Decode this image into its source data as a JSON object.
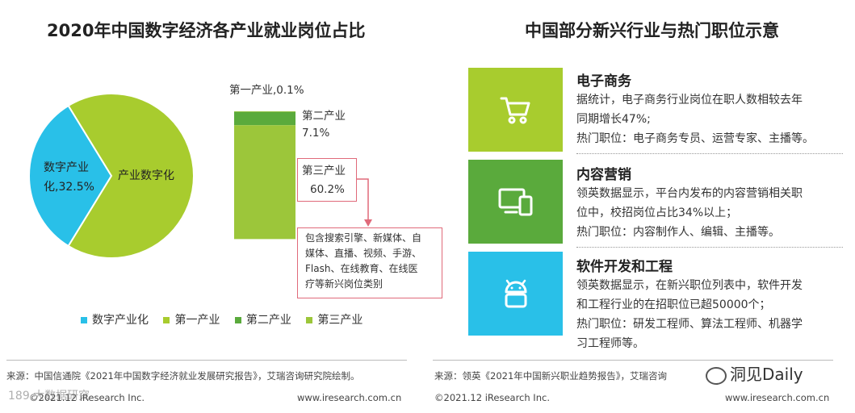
{
  "chart_data": {
    "type": "pie",
    "title": "2020年中国数字经济各产业就业岗位占比",
    "categories": [
      "数字产业化",
      "产业数字化"
    ],
    "values": [
      32.5,
      67.5
    ],
    "slice_labels": [
      "数字产业化,32.5%",
      "产业数字化"
    ],
    "breakdown": {
      "type": "stacked-bar",
      "parent": "产业数字化",
      "segments": [
        {
          "name": "第一产业",
          "value": 0.1,
          "label": "第一产业,0.1%"
        },
        {
          "name": "第二产业",
          "value": 7.1,
          "label_name": "第二产业",
          "label_value": "7.1%"
        },
        {
          "name": "第三产业",
          "value": 60.2,
          "label_name": "第三产业",
          "label_value": "60.2%"
        }
      ],
      "note": [
        "包含搜索引擎、新媒体、自",
        "媒体、直播、视频、手游、",
        "Flash、在线教育、在线医",
        "疗等新兴岗位类别"
      ]
    },
    "legend": [
      {
        "name": "数字产业化",
        "color": "#29c0e8"
      },
      {
        "name": "第一产业",
        "color": "#a8cc2e"
      },
      {
        "name": "第二产业",
        "color": "#5aaa3c"
      },
      {
        "name": "第三产业",
        "color": "#9cc63a"
      }
    ],
    "legend_position": "bottom"
  },
  "right": {
    "title": "中国部分新兴行业与热门职位示意",
    "cards": [
      {
        "title": "电子商务",
        "icon": "shopping-cart-icon",
        "color": "#a8cc2e",
        "lines": [
          "据统计，电子商务行业岗位在职人数相较去年",
          "同期增长47%;",
          "热门职位：电子商务专员、运营专家、主播等。"
        ]
      },
      {
        "title": "内容营销",
        "icon": "devices-icon",
        "color": "#5aaa3c",
        "lines": [
          "领英数据显示，平台内发布的内容营销相关职",
          "位中，校招岗位占比34%以上；",
          "热门职位：内容制作人、编辑、主播等。"
        ]
      },
      {
        "title": "软件开发和工程",
        "icon": "android-icon",
        "color": "#29c0e8",
        "lines": [
          "领英数据显示，在新兴职位列表中，软件开发",
          "和工程行业的在招职位已超50000个；",
          "热门职位：研发工程师、算法工程师、机器学",
          "习工程师等。"
        ]
      }
    ]
  },
  "footer": {
    "left_source": "来源：中国信通院《2021年中国数字经济就业发展研究报告》，艾瑞咨询研究院绘制。",
    "right_source": "来源：领英《2021年中国新兴职业趋势报告》，艾瑞咨询",
    "left_copy": "©2021.12 iResearch Inc.",
    "left_url": "www.iresearch.com.cn",
    "right_copy": "©2021.12 iResearch Inc.",
    "right_url": "www.iresearch.com.cn",
    "watermark": "洞见Daily",
    "watermark_left": "189 大数据研究"
  }
}
